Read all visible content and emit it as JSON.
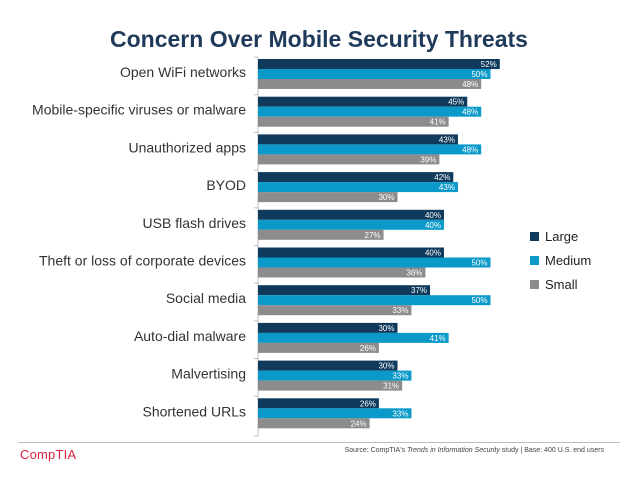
{
  "chart_data": {
    "type": "bar",
    "orientation": "horizontal",
    "title": "Concern Over Mobile Security Threats",
    "categories": [
      "Open WiFi networks",
      "Mobile-specific viruses or malware",
      "Unauthorized apps",
      "BYOD",
      "USB flash drives",
      "Theft or loss of corporate devices",
      "Social media",
      "Auto-dial malware",
      "Malvertising",
      "Shortened URLs"
    ],
    "series": [
      {
        "name": "Large",
        "color": "#0f3a5c",
        "values": [
          52,
          45,
          43,
          42,
          40,
          40,
          37,
          30,
          30,
          26
        ]
      },
      {
        "name": "Medium",
        "color": "#0a99c9",
        "values": [
          50,
          48,
          48,
          43,
          40,
          50,
          50,
          41,
          33,
          33
        ]
      },
      {
        "name": "Small",
        "color": "#8c8c8c",
        "values": [
          48,
          41,
          39,
          30,
          27,
          36,
          33,
          26,
          31,
          24
        ]
      }
    ],
    "value_suffix": "%",
    "xlim": [
      0,
      60
    ],
    "grid": false,
    "legend_position": "right"
  },
  "legend_title": "",
  "source": {
    "prefix": "Source: CompTIA's ",
    "italic": "Trends in Information Security",
    "suffix": " study | Base: 400 U.S. end users"
  },
  "logo_text": "CompTIA"
}
